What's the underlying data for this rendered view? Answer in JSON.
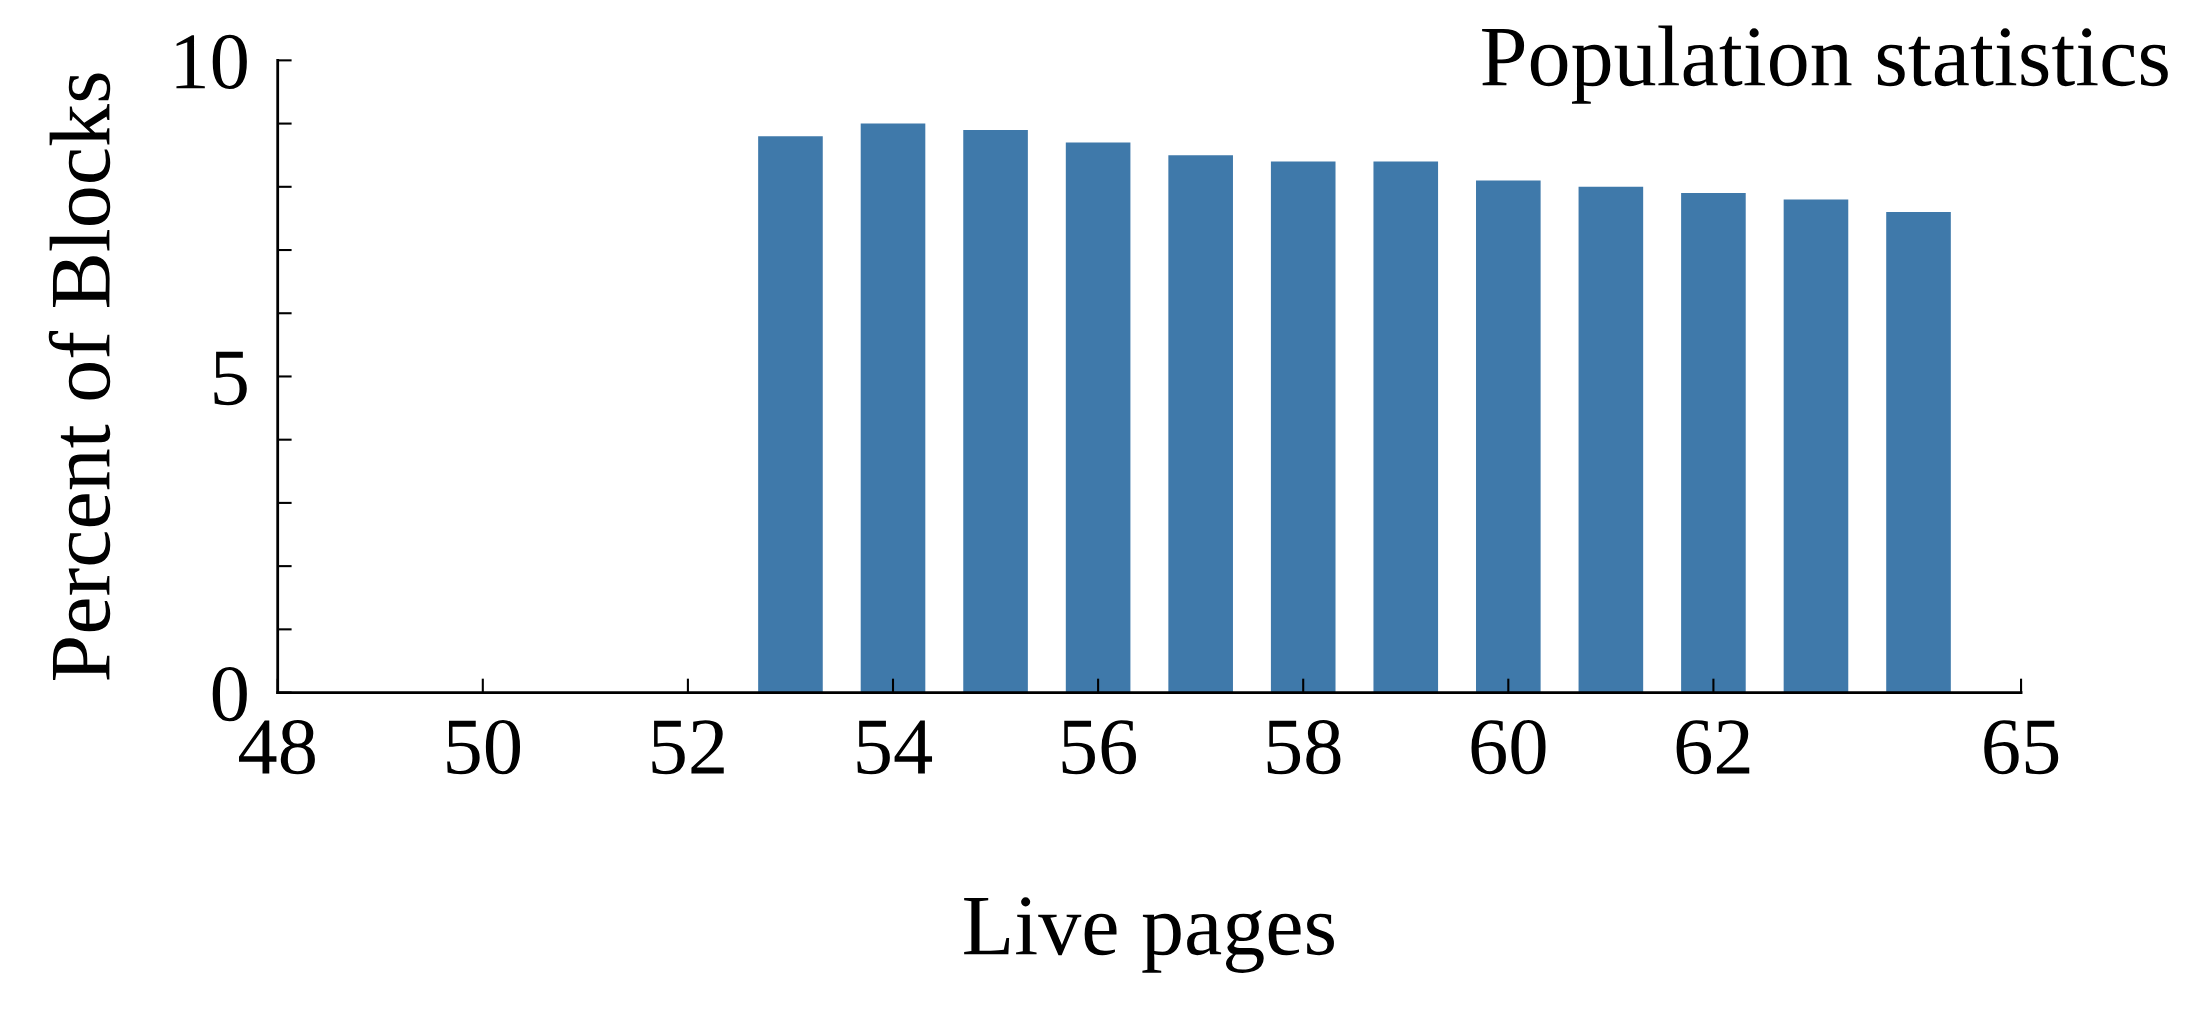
{
  "chart_data": {
    "type": "bar",
    "title": "Population statistics",
    "xlabel": "Live pages",
    "ylabel": "Percent of Blocks",
    "x": [
      53,
      54,
      55,
      56,
      57,
      58,
      59,
      60,
      61,
      62,
      63,
      64
    ],
    "values": [
      8.8,
      9.0,
      8.9,
      8.7,
      8.5,
      8.4,
      8.4,
      8.1,
      8.0,
      7.9,
      7.8,
      7.6
    ],
    "color": "#3f79aa",
    "xlim": [
      48,
      65
    ],
    "xticks": [
      48,
      50,
      52,
      54,
      56,
      58,
      60,
      62,
      65
    ],
    "ylim": [
      0,
      10
    ],
    "yticks": [
      0,
      {
        "value": 1,
        "label": null
      },
      {
        "value": 2,
        "label": null
      },
      {
        "value": 3,
        "label": null
      },
      {
        "value": 4,
        "label": null
      },
      5,
      {
        "value": 6,
        "label": null
      },
      {
        "value": 7,
        "label": null
      },
      {
        "value": 8,
        "label": null
      },
      {
        "value": 9,
        "label": null
      },
      10
    ],
    "grid": false,
    "legend": false
  }
}
